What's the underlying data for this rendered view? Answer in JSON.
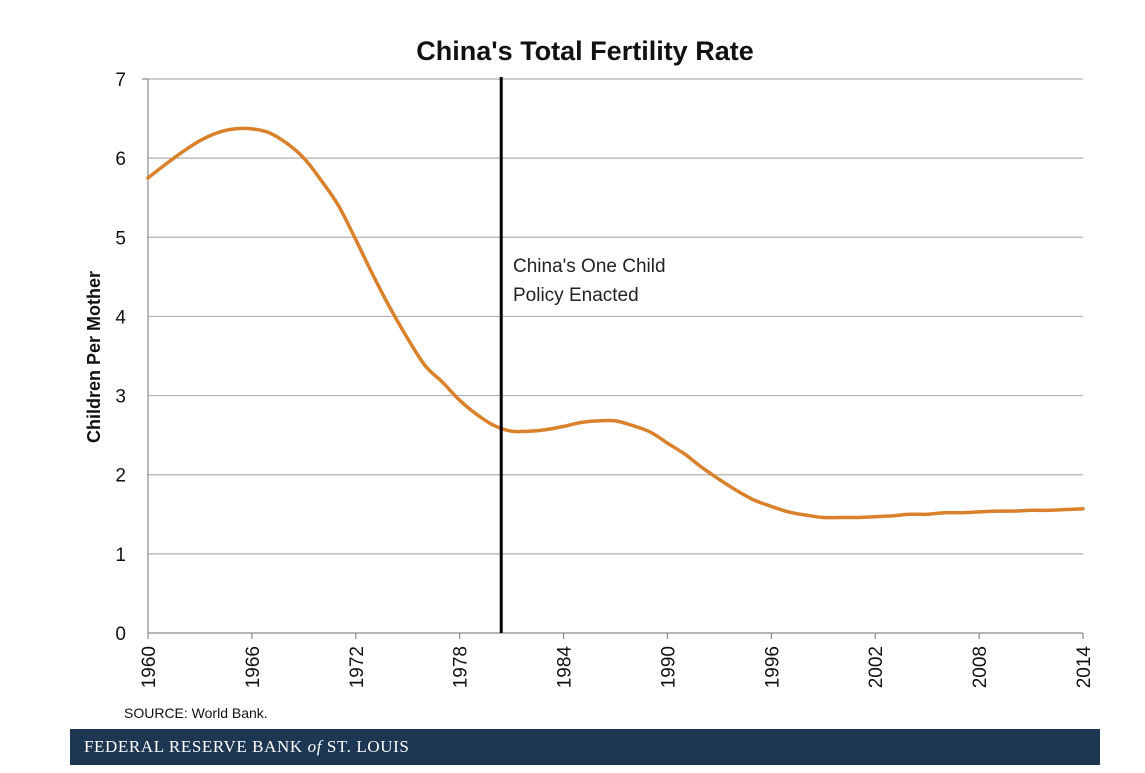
{
  "chart_data": {
    "type": "line",
    "title": "China's Total Fertility Rate",
    "xlabel": "",
    "ylabel": "Children Per Mother",
    "xlim": [
      1960,
      2014
    ],
    "ylim": [
      0,
      7
    ],
    "yticks": [
      0,
      1,
      2,
      3,
      4,
      5,
      6,
      7
    ],
    "xticks": [
      1960,
      1966,
      1972,
      1978,
      1984,
      1990,
      1996,
      2002,
      2008,
      2014
    ],
    "grid": true,
    "line_color": "#d9812b",
    "series": [
      {
        "x": [
          1960,
          1961,
          1962,
          1963,
          1964,
          1965,
          1966,
          1967,
          1968,
          1969,
          1970,
          1971,
          1972,
          1973,
          1974,
          1975,
          1976,
          1977,
          1978,
          1979,
          1980,
          1981,
          1982,
          1983,
          1984,
          1985,
          1986,
          1987,
          1988,
          1989,
          1990,
          1991,
          1992,
          1993,
          1994,
          1995,
          1996,
          1997,
          1998,
          1999,
          2000,
          2001,
          2002,
          2003,
          2004,
          2005,
          2006,
          2007,
          2008,
          2009,
          2010,
          2011,
          2012,
          2013,
          2014
        ],
        "y": [
          5.75,
          5.92,
          6.08,
          6.22,
          6.32,
          6.37,
          6.37,
          6.32,
          6.19,
          6.0,
          5.72,
          5.4,
          4.97,
          4.52,
          4.1,
          3.72,
          3.38,
          3.17,
          2.94,
          2.76,
          2.62,
          2.55,
          2.55,
          2.57,
          2.61,
          2.66,
          2.68,
          2.68,
          2.62,
          2.54,
          2.4,
          2.26,
          2.09,
          1.94,
          1.8,
          1.68,
          1.6,
          1.53,
          1.49,
          1.46,
          1.46,
          1.46,
          1.47,
          1.48,
          1.5,
          1.5,
          1.52,
          1.52,
          1.53,
          1.54,
          1.54,
          1.55,
          1.55,
          1.56,
          1.57
        ]
      }
    ],
    "vline": {
      "x": 1980.4,
      "label_line1": "China's One Child",
      "label_line2": "Policy Enacted"
    },
    "source": "SOURCE: World Bank."
  },
  "footer": {
    "prefix": "FEDERAL RESERVE BANK",
    "of": "of",
    "suffix": "ST. LOUIS"
  },
  "colors": {
    "footer_bg": "#1d3652",
    "line": "#d9812b",
    "grid": "#b0b0b0"
  }
}
